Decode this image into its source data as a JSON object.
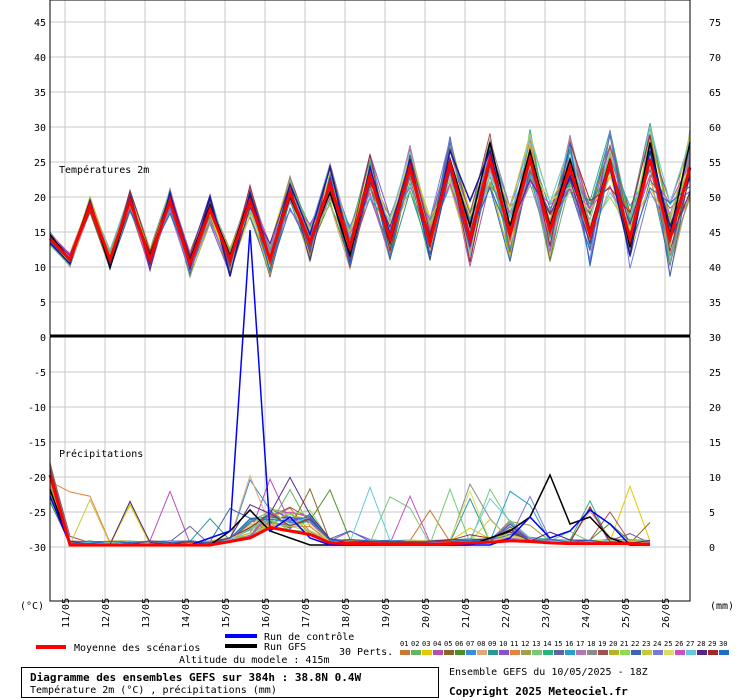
{
  "chart_data": {
    "type": "line",
    "title": "Diagramme des ensembles GEFS sur 384h : 38.8N 0.4W",
    "subtitle": "Température 2m (°C) , précipitations (mm)",
    "altitude": "Altitude du modele : 415m",
    "run_info": "Ensemble GEFS du 10/05/2025 - 18Z",
    "copyright": "Copyright 2025 Meteociel.fr",
    "panel_labels": [
      "Températures 2m",
      "Précipitations"
    ],
    "left_unit": "(°C)",
    "right_unit": "(mm)",
    "left_ticks": [
      "45",
      "40",
      "35",
      "30",
      "25",
      "20",
      "15",
      "10",
      "5",
      "0",
      "-5",
      "-10",
      "-15",
      "-20",
      "-25",
      "-30"
    ],
    "right_ticks": [
      "75",
      "70",
      "65",
      "60",
      "55",
      "50",
      "45",
      "40",
      "35",
      "30",
      "25",
      "20",
      "15",
      "10",
      "5",
      "0"
    ],
    "x_labels": [
      "11/05",
      "12/05",
      "13/05",
      "14/05",
      "15/05",
      "16/05",
      "17/05",
      "18/05",
      "19/05",
      "20/05",
      "21/05",
      "22/05",
      "23/05",
      "24/05",
      "25/05",
      "26/05"
    ],
    "temp_ylim": [
      5,
      45
    ],
    "precip_ylim": [
      0,
      30
    ],
    "x_step_hours": 6,
    "legend": {
      "mean": "Moyenne des scénarios",
      "control": "Run de contrôle",
      "gfs": "Run GFS",
      "perts": "30 Perts.",
      "pert_numbers": [
        "01",
        "02",
        "03",
        "04",
        "05",
        "06",
        "07",
        "08",
        "09",
        "10",
        "11",
        "12",
        "13",
        "14",
        "15",
        "16",
        "17",
        "18",
        "19",
        "20",
        "21",
        "22",
        "23",
        "24",
        "25",
        "26",
        "27",
        "28",
        "29",
        "30"
      ],
      "colors": {
        "mean": "#ff0000",
        "control": "#0000ff",
        "gfs": "#000000"
      }
    },
    "pert_colors": [
      "#c87832",
      "#64b464",
      "#e6c800",
      "#b450b4",
      "#8c6428",
      "#508c28",
      "#3c8cdc",
      "#dcaa78",
      "#289696",
      "#8c50c8",
      "#e6823c",
      "#a0a050",
      "#78c878",
      "#28b478",
      "#6464a0",
      "#28a0c8",
      "#b478b4",
      "#8c8c8c",
      "#a05050",
      "#b4b428",
      "#8cdc50",
      "#3c64b4",
      "#c8c83c",
      "#7878dc",
      "#dcdc64",
      "#c850c8",
      "#64c8dc",
      "#50288c",
      "#a02828",
      "#1e6ec8"
    ],
    "series": {
      "mean_temp": [
        16.5,
        14.0,
        20.5,
        14.0,
        21.0,
        14.0,
        21.0,
        13.5,
        20.0,
        14.0,
        21.0,
        14.0,
        22.0,
        16.0,
        23.0,
        15.5,
        24.0,
        16.5,
        25.0,
        16.0,
        25.5,
        16.5,
        26.0,
        17.0,
        26.0,
        17.5,
        25.0,
        17.0,
        25.5,
        16.5,
        26.0,
        16.5,
        25.0
      ],
      "control_temp": [
        16.0,
        13.5,
        21.0,
        13.5,
        21.5,
        13.5,
        22.0,
        13.0,
        21.5,
        12.0,
        22.0,
        14.0,
        23.0,
        17.0,
        25.0,
        15.0,
        25.0,
        17.0,
        26.0,
        15.5,
        27.0,
        21.0,
        27.0,
        17.0,
        26.0,
        17.5,
        24.0,
        17.5,
        25.0,
        14.5,
        27.0,
        18.0,
        24.0
      ],
      "gfs_temp": [
        17.0,
        14.0,
        21.0,
        13.0,
        21.0,
        14.5,
        21.0,
        14.0,
        20.5,
        14.5,
        21.5,
        14.0,
        21.5,
        16.0,
        22.0,
        14.5,
        24.0,
        16.0,
        25.0,
        16.5,
        26.0,
        18.0,
        28.0,
        18.0,
        27.0,
        18.0,
        26.0,
        17.5,
        26.0,
        15.5,
        28.0,
        17.0,
        28.0
      ],
      "mean_precip": [
        10,
        0,
        0,
        0,
        0,
        0,
        0,
        0,
        0,
        0.5,
        1.0,
        2.5,
        2.0,
        1.5,
        0.3,
        0.2,
        0.2,
        0.1,
        0.1,
        0.1,
        0.2,
        0.3,
        0.4,
        0.6,
        0.5,
        0.3,
        0.2,
        0.2,
        0.2,
        0.2,
        0.1
      ],
      "control_precip": [
        7,
        0,
        0,
        0,
        0,
        0,
        0,
        0,
        1,
        2,
        45,
        2,
        4,
        1,
        0,
        0,
        0,
        0,
        0,
        0,
        0,
        0,
        0,
        1,
        4,
        1,
        2,
        5,
        3,
        0,
        0
      ],
      "gfs_precip": [
        8,
        0,
        0,
        0,
        0,
        0,
        0,
        0,
        0,
        2,
        5,
        2,
        1,
        0,
        0,
        0,
        0,
        0,
        0,
        0,
        0,
        0,
        1,
        2,
        4,
        10,
        3,
        4,
        1,
        0,
        0
      ]
    }
  }
}
